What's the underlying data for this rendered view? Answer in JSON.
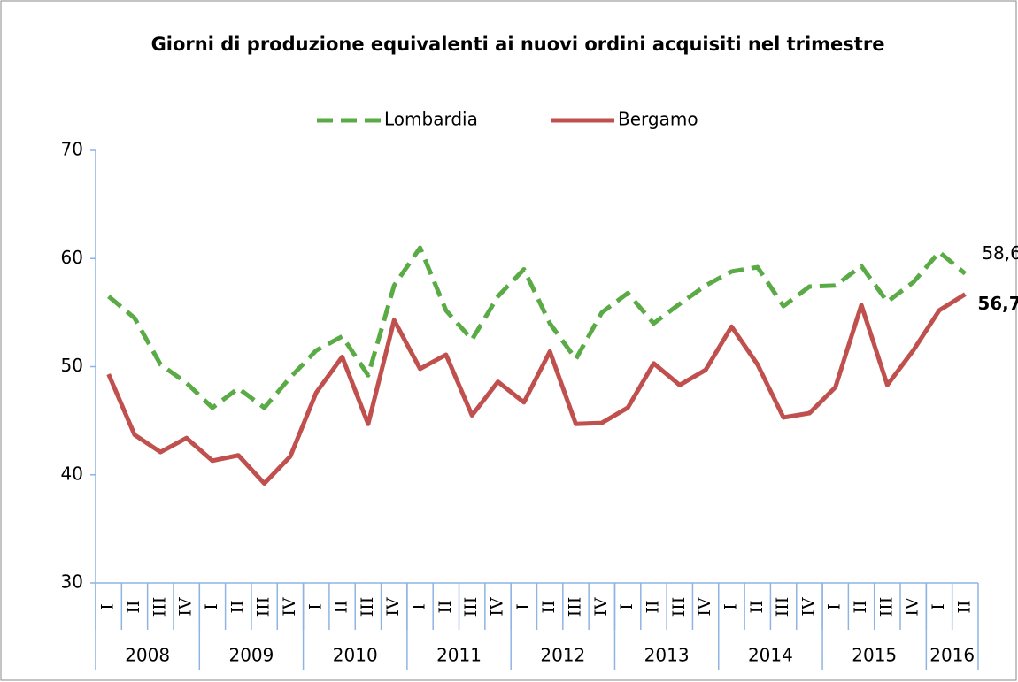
{
  "chart_data": {
    "type": "line",
    "title": "Giorni di produzione equivalenti ai nuovi ordini acquisiti nel trimestre",
    "categories": [
      [
        "2008",
        "I"
      ],
      [
        "2008",
        "II"
      ],
      [
        "2008",
        "III"
      ],
      [
        "2008",
        "IV"
      ],
      [
        "2009",
        "I"
      ],
      [
        "2009",
        "II"
      ],
      [
        "2009",
        "III"
      ],
      [
        "2009",
        "IV"
      ],
      [
        "2010",
        "I"
      ],
      [
        "2010",
        "II"
      ],
      [
        "2010",
        "III"
      ],
      [
        "2010",
        "IV"
      ],
      [
        "2011",
        "I"
      ],
      [
        "2011",
        "II"
      ],
      [
        "2011",
        "III"
      ],
      [
        "2011",
        "IV"
      ],
      [
        "2012",
        "I"
      ],
      [
        "2012",
        "II"
      ],
      [
        "2012",
        "III"
      ],
      [
        "2012",
        "IV"
      ],
      [
        "2013",
        "I"
      ],
      [
        "2013",
        "II"
      ],
      [
        "2013",
        "III"
      ],
      [
        "2013",
        "IV"
      ],
      [
        "2014",
        "I"
      ],
      [
        "2014",
        "II"
      ],
      [
        "2014",
        "III"
      ],
      [
        "2014",
        "IV"
      ],
      [
        "2015",
        "I"
      ],
      [
        "2015",
        "II"
      ],
      [
        "2015",
        "III"
      ],
      [
        "2015",
        "IV"
      ],
      [
        "2016",
        "I"
      ],
      [
        "2016",
        "II"
      ]
    ],
    "series": [
      {
        "name": "Lombardia",
        "color": "#5aaa46",
        "dashed": true,
        "values": [
          56.5,
          54.5,
          50.2,
          48.5,
          46.2,
          48,
          46.2,
          49,
          51.5,
          52.8,
          49.2,
          57.5,
          61,
          55.2,
          52.5,
          56.5,
          59,
          54,
          50.7,
          55,
          56.8,
          54,
          55.8,
          57.5,
          58.8,
          59.2,
          55.6,
          57.4,
          57.5,
          59.3,
          56,
          57.8,
          60.6,
          58.6
        ],
        "value_labels": [
          null,
          null,
          null,
          null,
          null,
          null,
          null,
          null,
          null,
          null,
          null,
          null,
          null,
          null,
          null,
          null,
          null,
          null,
          null,
          null,
          null,
          null,
          null,
          null,
          null,
          null,
          null,
          null,
          null,
          null,
          null,
          null,
          null,
          "58,6"
        ]
      },
      {
        "name": "Bergamo",
        "color": "#c0504d",
        "dashed": false,
        "values": [
          49.3,
          43.7,
          42.1,
          43.4,
          41.3,
          41.8,
          39.2,
          41.7,
          47.6,
          50.9,
          44.7,
          54.3,
          49.8,
          51.1,
          45.5,
          48.6,
          46.7,
          51.4,
          44.7,
          44.8,
          46.2,
          50.3,
          48.3,
          49.7,
          53.7,
          50.2,
          45.3,
          45.7,
          48.1,
          55.7,
          48.3,
          51.5,
          55.2,
          56.7
        ],
        "value_labels": [
          null,
          null,
          null,
          null,
          null,
          null,
          null,
          null,
          null,
          null,
          null,
          null,
          null,
          null,
          null,
          null,
          null,
          null,
          null,
          null,
          null,
          null,
          null,
          null,
          null,
          null,
          null,
          null,
          null,
          null,
          null,
          null,
          null,
          "56,7"
        ]
      }
    ],
    "ylim": [
      30,
      70
    ],
    "yticks": [
      30,
      40,
      50,
      60,
      70
    ],
    "grid": false,
    "legend": "top"
  }
}
